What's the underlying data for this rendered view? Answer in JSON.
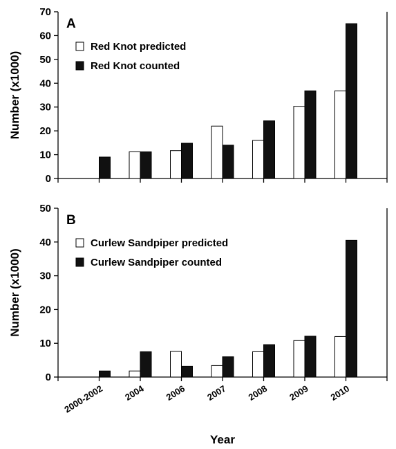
{
  "chart_data": [
    {
      "type": "bar",
      "panel_label": "A",
      "categories": [
        "2000-2002",
        "2004",
        "2006",
        "2007",
        "2008",
        "2009",
        "2010"
      ],
      "series": [
        {
          "name": "Red Knot predicted",
          "values": [
            null,
            11.2,
            11.7,
            22.0,
            16.0,
            30.3,
            36.8
          ],
          "color": "#ffffff"
        },
        {
          "name": "Red Knot counted",
          "values": [
            9.0,
            11.2,
            14.8,
            14.0,
            24.2,
            36.8,
            65.0
          ],
          "color": "#111111"
        }
      ],
      "ylabel": "Number (x1000)",
      "xlabel": "",
      "ylim": [
        0,
        70
      ],
      "yticks": [
        0,
        10,
        20,
        30,
        40,
        50,
        60,
        70
      ],
      "legend": "top-left"
    },
    {
      "type": "bar",
      "panel_label": "B",
      "categories": [
        "2000-2002",
        "2004",
        "2006",
        "2007",
        "2008",
        "2009",
        "2010"
      ],
      "series": [
        {
          "name": "Curlew  Sandpiper predicted",
          "values": [
            null,
            1.8,
            7.6,
            3.4,
            7.5,
            10.8,
            12.0
          ],
          "color": "#ffffff"
        },
        {
          "name": "Curlew  Sandpiper counted",
          "values": [
            1.8,
            7.5,
            3.2,
            6.0,
            9.6,
            12.1,
            40.5
          ],
          "color": "#111111"
        }
      ],
      "ylabel": "Number (x1000)",
      "xlabel": "Year",
      "ylim": [
        0,
        50
      ],
      "yticks": [
        0,
        10,
        20,
        30,
        40,
        50
      ],
      "legend": "top-left"
    }
  ]
}
